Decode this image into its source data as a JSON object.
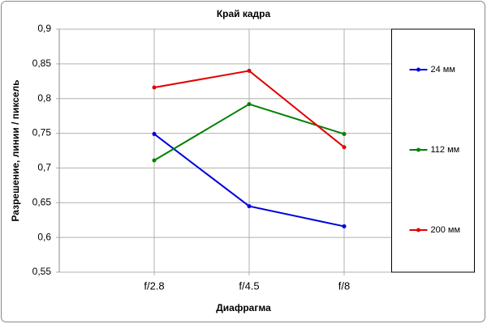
{
  "chart_data": {
    "type": "line",
    "title": "Край кадра",
    "x_label": "Диафрагма",
    "y_label": "Разрешение, линии / пиксель",
    "categories": [
      "f/2.8",
      "f/4.5",
      "f/8"
    ],
    "series": [
      {
        "name": "24 мм",
        "color": "#0000dd",
        "values": [
          0.749,
          0.645,
          0.616
        ]
      },
      {
        "name": "112 мм",
        "color": "#008000",
        "values": [
          0.711,
          0.792,
          0.749
        ]
      },
      {
        "name": "200 мм",
        "color": "#e00000",
        "values": [
          0.816,
          0.84,
          0.73
        ]
      }
    ],
    "ylim": [
      0.55,
      0.9
    ],
    "yticks": [
      {
        "value": 0.55,
        "label": "0,55"
      },
      {
        "value": 0.6,
        "label": "0,6"
      },
      {
        "value": 0.65,
        "label": "0,65"
      },
      {
        "value": 0.7,
        "label": "0,7"
      },
      {
        "value": 0.75,
        "label": "0,75"
      },
      {
        "value": 0.8,
        "label": "0,8"
      },
      {
        "value": 0.85,
        "label": "0,85"
      },
      {
        "value": 0.9,
        "label": "0,9"
      }
    ],
    "grid": true,
    "legend": "right"
  }
}
